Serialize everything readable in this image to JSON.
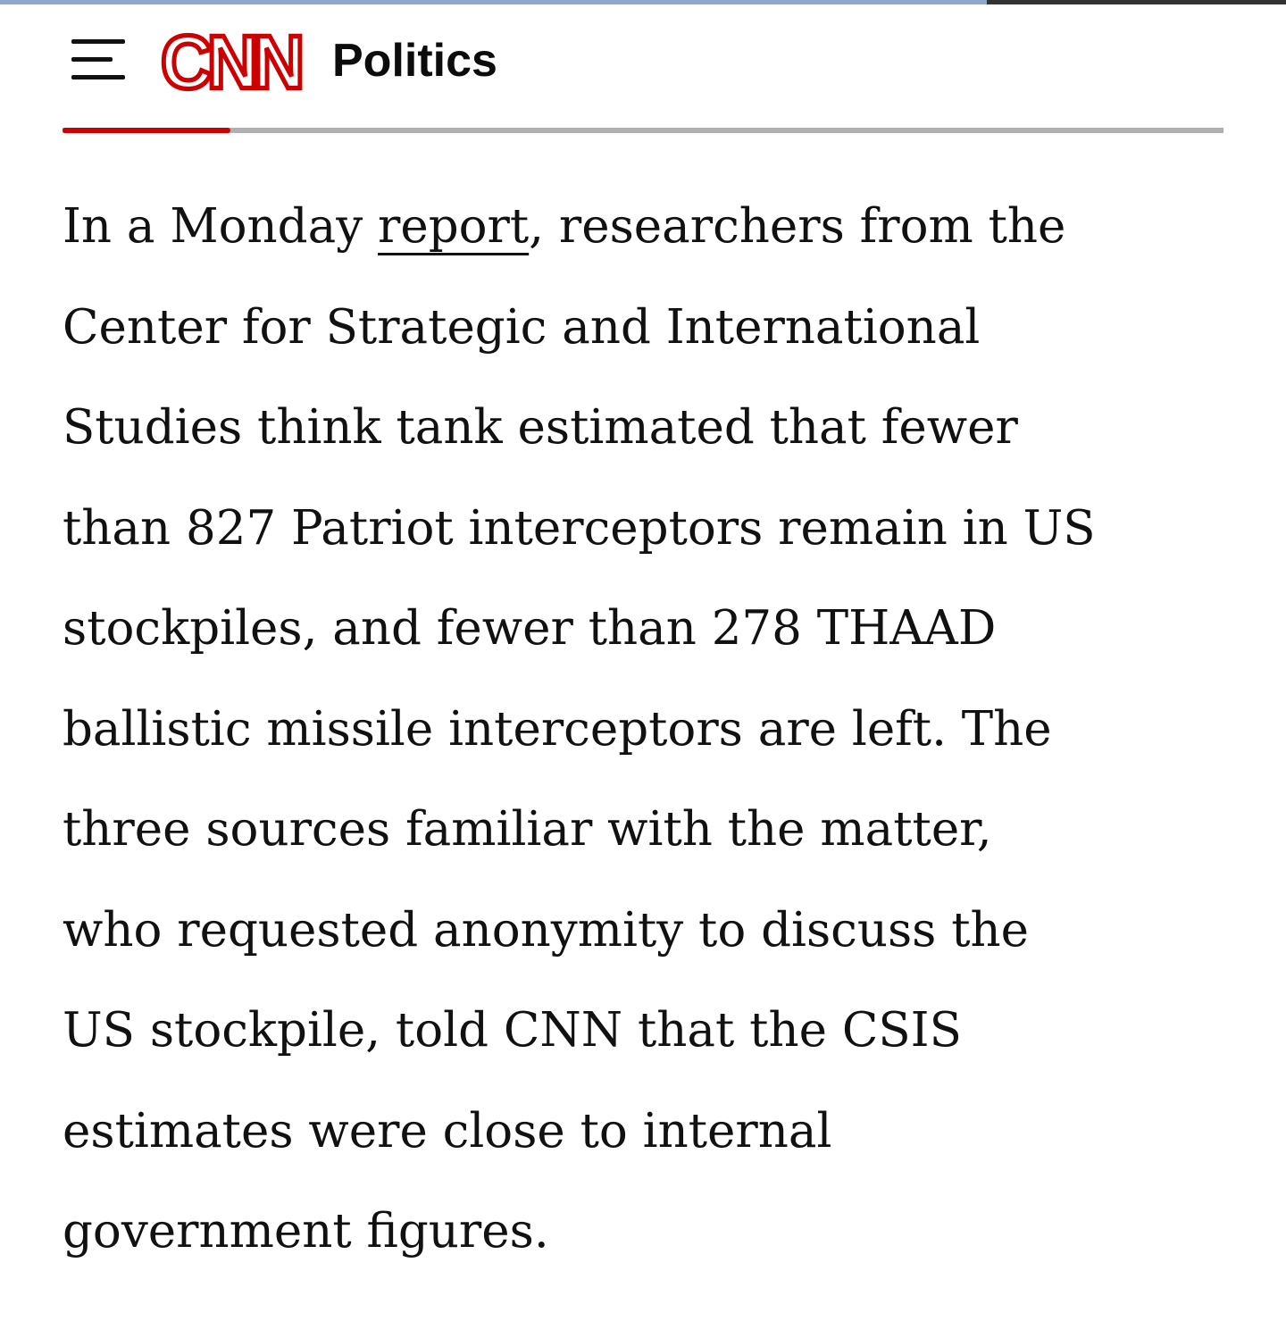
{
  "header": {
    "logo": "CNN",
    "section": "Politics"
  },
  "article": {
    "first_line": {
      "before": "In a Monday ",
      "link": "report",
      "after": ", researchers from the"
    },
    "lines": [
      "Center for Strategic and International",
      "Studies think tank estimated that fewer",
      "than 827 Patriot interceptors remain in US",
      "stockpiles, and fewer than 278 THAAD",
      "ballistic missile interceptors are left. The",
      "three sources familiar with the matter,",
      "who requested anonymity to discuss the",
      "US stockpile, told CNN that the CSIS",
      "estimates were close to internal",
      "government figures."
    ]
  }
}
